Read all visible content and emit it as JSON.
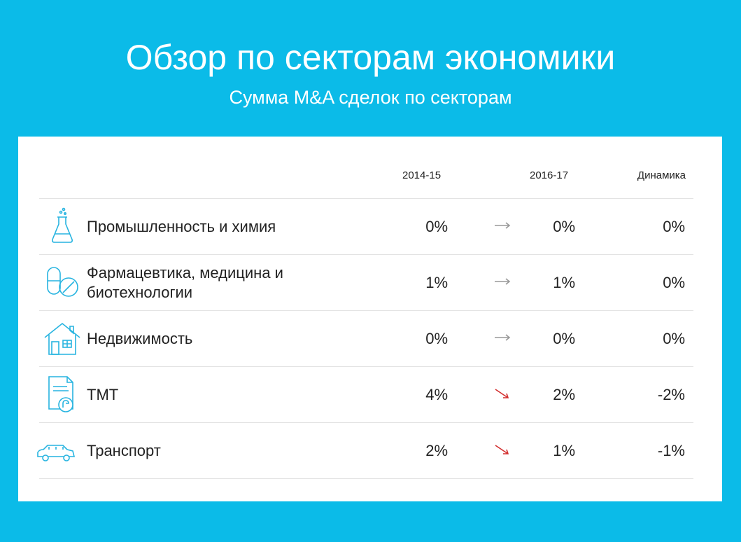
{
  "page": {
    "title": "Обзор по секторам экономики",
    "subtitle": "Сумма M&A сделок по секторам"
  },
  "table": {
    "headers": {
      "period1": "2014-15",
      "period2": "2016-17",
      "dynamics": "Динамика"
    },
    "rows": [
      {
        "icon": "flask-icon",
        "name": "Промышленность и химия",
        "v1": "0%",
        "trend": "flat",
        "v2": "0%",
        "dynamics": "0%"
      },
      {
        "icon": "pills-icon",
        "name": "Фармацевтика, медицина и биотехнологии",
        "v1": "1%",
        "trend": "flat",
        "v2": "1%",
        "dynamics": "0%"
      },
      {
        "icon": "house-icon",
        "name": "Недвижимость",
        "v1": "0%",
        "trend": "flat",
        "v2": "0%",
        "dynamics": "0%"
      },
      {
        "icon": "document-icon",
        "name": "ТМТ",
        "v1": "4%",
        "trend": "down",
        "v2": "2%",
        "dynamics": "-2%"
      },
      {
        "icon": "car-icon",
        "name": "Транспорт",
        "v1": "2%",
        "trend": "down",
        "v2": "1%",
        "dynamics": "-1%"
      }
    ]
  },
  "colors": {
    "background": "#0bbbe8",
    "icon": "#27b4e0",
    "flat_arrow": "#999999",
    "down_arrow": "#d32f2f"
  }
}
